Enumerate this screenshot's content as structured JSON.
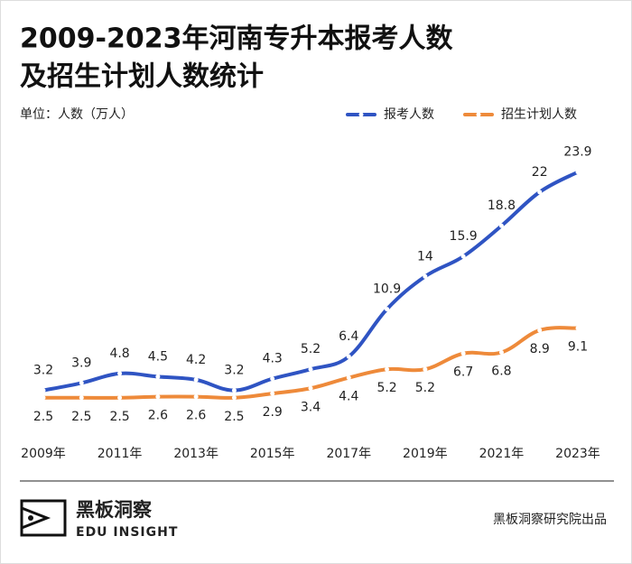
{
  "chart_data": {
    "type": "line",
    "title": [
      "2009-2023年河南专升本报考人数",
      "及招生计划人数统计"
    ],
    "subtitle": "单位：人数（万人）",
    "categories": [
      "2009年",
      null,
      "2011年",
      null,
      "2013年",
      null,
      "2015年",
      null,
      "2017年",
      null,
      "2019年",
      null,
      "2021年",
      null,
      "2023年"
    ],
    "series": [
      {
        "name": "报考人数",
        "color": "#2f54c3",
        "values": [
          3.2,
          3.9,
          4.8,
          4.5,
          4.2,
          3.2,
          4.3,
          5.2,
          6.4,
          10.9,
          14,
          15.9,
          18.8,
          22,
          23.9
        ]
      },
      {
        "name": "招生计划人数",
        "color": "#ee8a3a",
        "values": [
          2.5,
          2.5,
          2.5,
          2.6,
          2.6,
          2.5,
          2.9,
          3.4,
          4.4,
          5.2,
          5.2,
          6.7,
          6.8,
          8.9,
          9.1
        ]
      }
    ]
  },
  "footer": {
    "brand": "黑板洞察",
    "brand_en": "EDU INSIGHT",
    "source": "黑板洞察研究院出品"
  }
}
